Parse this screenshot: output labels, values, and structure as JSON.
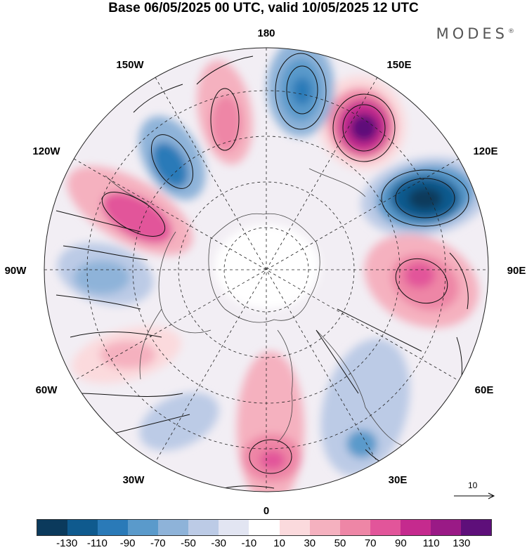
{
  "header": {
    "title": "Base 06/05/2025 00 UTC, valid 10/05/2025 12 UTC",
    "brand": "MODES",
    "brand_mark": "®"
  },
  "map": {
    "projection": "north-polar-stereographic",
    "longitude_labels": {
      "lon_180": "180",
      "lon_150e": "150E",
      "lon_120e": "120E",
      "lon_90e": "90E",
      "lon_60e": "60E",
      "lon_30e": "30E",
      "lon_0": "0",
      "lon_30w": "30W",
      "lon_60w": "60W",
      "lon_90w": "90W",
      "lon_120w": "120W",
      "lon_150w": "150W"
    },
    "anomaly_centers": [
      {
        "sign": "positive",
        "level": 130,
        "location": "150E"
      },
      {
        "sign": "negative",
        "level": -130,
        "location": "120E"
      },
      {
        "sign": "positive",
        "level": 70,
        "location": "90E"
      },
      {
        "sign": "negative",
        "level": -70,
        "location": "165E"
      },
      {
        "sign": "positive",
        "level": 50,
        "location": "165W"
      },
      {
        "sign": "negative",
        "level": -70,
        "location": "140W"
      },
      {
        "sign": "positive",
        "level": 70,
        "location": "115W"
      },
      {
        "sign": "negative",
        "level": -50,
        "location": "90W"
      },
      {
        "sign": "positive",
        "level": 50,
        "location": "60W"
      },
      {
        "sign": "positive",
        "level": 70,
        "location": "0"
      },
      {
        "sign": "negative",
        "level": -50,
        "location": "30E"
      }
    ]
  },
  "vector_legend": {
    "value": "10"
  },
  "colorbar": {
    "colors": [
      "#0b3a5c",
      "#0f5a8e",
      "#2a7ab8",
      "#5a9acb",
      "#8eb3d9",
      "#bccbe6",
      "#e2e5f2",
      "#ffffff",
      "#fbdadd",
      "#f5b1bf",
      "#ee86a6",
      "#e2559a",
      "#c52a8e",
      "#9a1a86",
      "#5e0f7a"
    ],
    "tick_labels": [
      "-130",
      "-110",
      "-90",
      "-70",
      "-50",
      "-30",
      "-10",
      "10",
      "30",
      "50",
      "70",
      "90",
      "110",
      "130"
    ]
  }
}
